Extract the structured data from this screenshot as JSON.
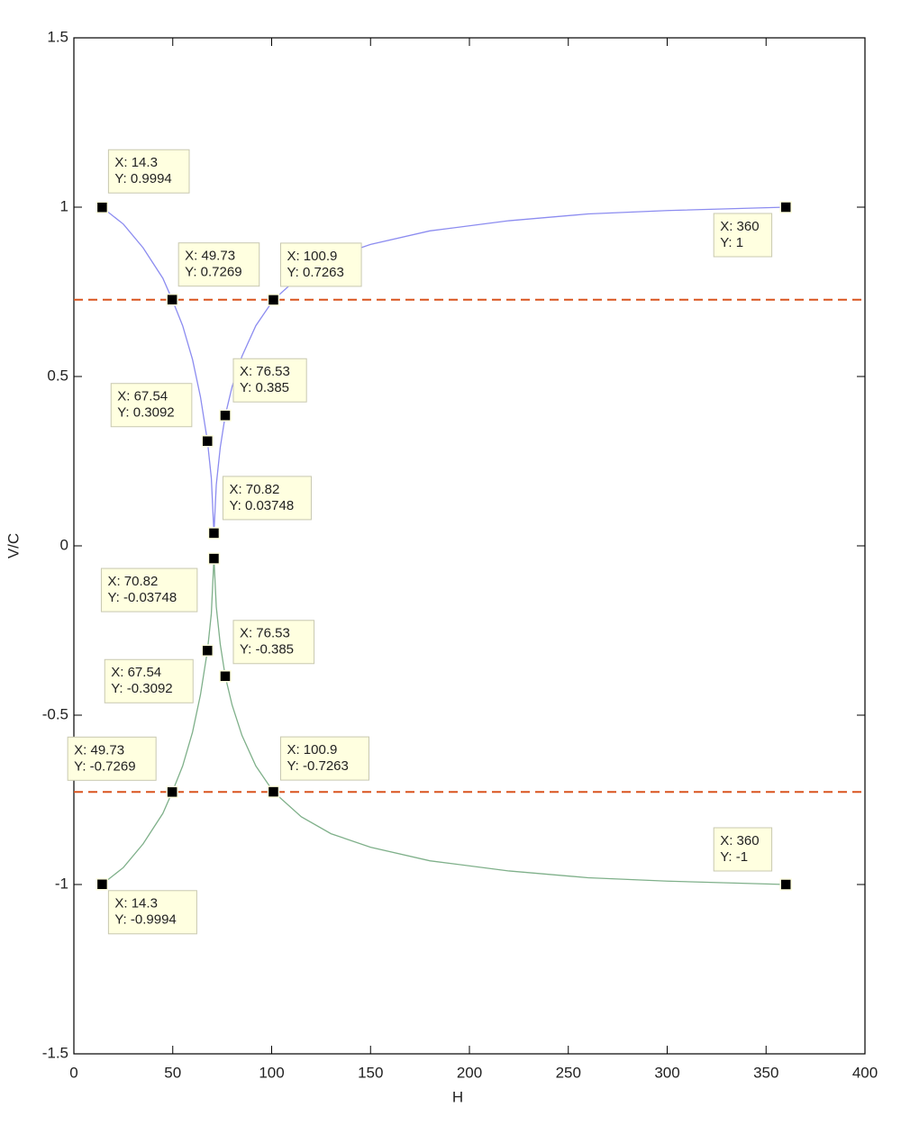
{
  "chart_data": {
    "type": "line",
    "xlabel": "H",
    "ylabel": "V/C",
    "xlim": [
      0,
      400
    ],
    "ylim": [
      -1.5,
      1.5
    ],
    "xticks": [
      0,
      50,
      100,
      150,
      200,
      250,
      300,
      350,
      400
    ],
    "yticks": [
      -1.5,
      -1,
      -0.5,
      0,
      0.5,
      1,
      1.5
    ],
    "series": [
      {
        "color": "#8c8cf0",
        "x": [
          14.3,
          25,
          35,
          45,
          49.73,
          55,
          60,
          64,
          67.54,
          69.5,
          70.82,
          72,
          74,
          76.53,
          80,
          85,
          92,
          100.9,
          115,
          130,
          150,
          180,
          220,
          260,
          300,
          360
        ],
        "values": [
          0.9994,
          0.95,
          0.88,
          0.79,
          0.7269,
          0.65,
          0.55,
          0.44,
          0.3092,
          0.2,
          0.03748,
          0.18,
          0.29,
          0.385,
          0.47,
          0.56,
          0.65,
          0.7263,
          0.8,
          0.85,
          0.89,
          0.93,
          0.96,
          0.98,
          0.99,
          1
        ]
      },
      {
        "color": "#7fb08a",
        "x": [
          14.3,
          25,
          35,
          45,
          49.73,
          55,
          60,
          64,
          67.54,
          69.5,
          70.82,
          72,
          74,
          76.53,
          80,
          85,
          92,
          100.9,
          115,
          130,
          150,
          180,
          220,
          260,
          300,
          360
        ],
        "values": [
          -0.9994,
          -0.95,
          -0.88,
          -0.79,
          -0.7269,
          -0.65,
          -0.55,
          -0.44,
          -0.3092,
          -0.2,
          -0.03748,
          -0.18,
          -0.29,
          -0.385,
          -0.47,
          -0.56,
          -0.65,
          -0.7263,
          -0.8,
          -0.85,
          -0.89,
          -0.93,
          -0.96,
          -0.98,
          -0.99,
          -1
        ]
      }
    ],
    "hlines": [
      {
        "y": 0.7266,
        "color": "#d9541e"
      },
      {
        "y": -0.7266,
        "color": "#d9541e"
      }
    ],
    "datatips": [
      {
        "x": 14.3,
        "y": 0.9994,
        "x_label": "X: 14.3",
        "y_label": "Y: 0.9994"
      },
      {
        "x": 49.73,
        "y": 0.7269,
        "x_label": "X: 49.73",
        "y_label": "Y: 0.7269"
      },
      {
        "x": 100.9,
        "y": 0.7263,
        "x_label": "X: 100.9",
        "y_label": "Y: 0.7263"
      },
      {
        "x": 360,
        "y": 1,
        "x_label": "X: 360",
        "y_label": "Y: 1"
      },
      {
        "x": 76.53,
        "y": 0.385,
        "x_label": "X: 76.53",
        "y_label": "Y: 0.385"
      },
      {
        "x": 67.54,
        "y": 0.3092,
        "x_label": "X: 67.54",
        "y_label": "Y: 0.3092"
      },
      {
        "x": 70.82,
        "y": 0.03748,
        "x_label": "X: 70.82",
        "y_label": "Y: 0.03748"
      },
      {
        "x": 70.82,
        "y": -0.03748,
        "x_label": "X: 70.82",
        "y_label": "Y: -0.03748"
      },
      {
        "x": 76.53,
        "y": -0.385,
        "x_label": "X: 76.53",
        "y_label": "Y: -0.385"
      },
      {
        "x": 67.54,
        "y": -0.3092,
        "x_label": "X: 67.54",
        "y_label": "Y: -0.3092"
      },
      {
        "x": 49.73,
        "y": -0.7269,
        "x_label": "X: 49.73",
        "y_label": "Y: -0.7269"
      },
      {
        "x": 100.9,
        "y": -0.7263,
        "x_label": "X: 100.9",
        "y_label": "Y: -0.7263"
      },
      {
        "x": 360,
        "y": -1,
        "x_label": "X: 360",
        "y_label": "Y: -1"
      },
      {
        "x": 14.3,
        "y": -0.9994,
        "x_label": "X: 14.3",
        "y_label": "Y: -0.9994"
      }
    ]
  }
}
